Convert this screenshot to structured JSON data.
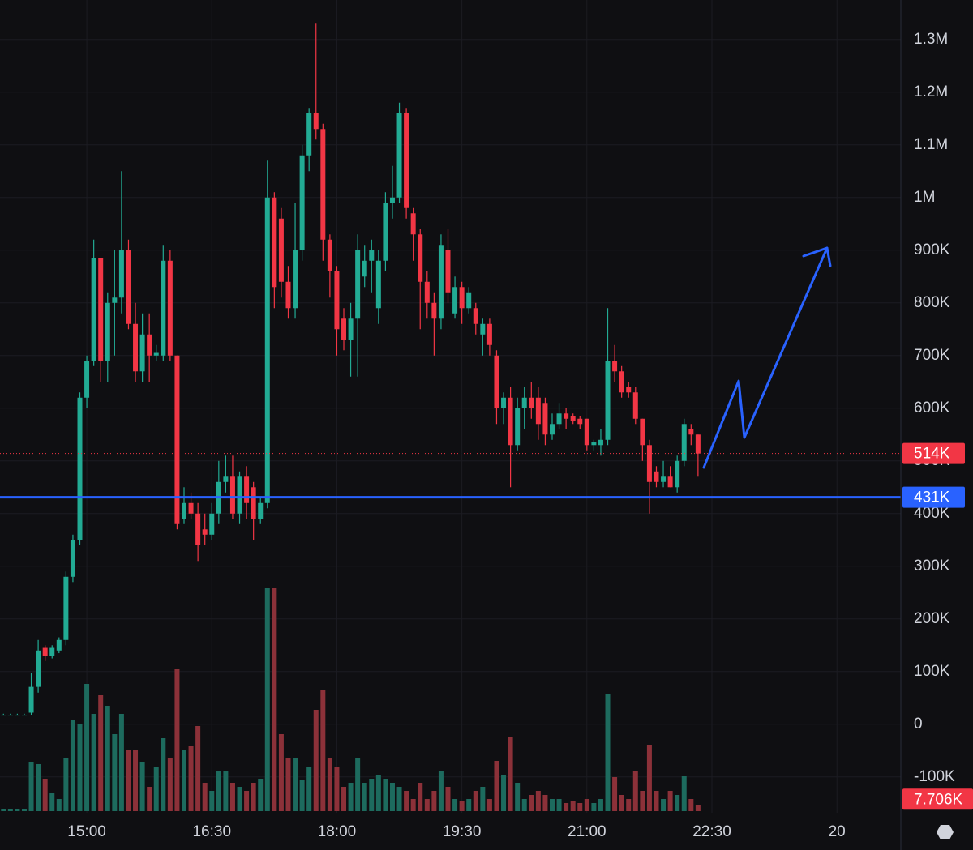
{
  "chart_data": {
    "type": "candlestick",
    "up_color": "#22ab94",
    "down_color": "#f23645",
    "volume_up_color": "#1d6b5e",
    "volume_down_color": "#8c3139",
    "grid": true,
    "xlim": [
      -0.5,
      129.2
    ],
    "ylim": [
      -168000,
      1375000
    ],
    "volume_lim": [
      0,
      280000
    ],
    "xticks": [
      {
        "value": 12,
        "label": "15:00"
      },
      {
        "value": 30,
        "label": "16:30"
      },
      {
        "value": 48,
        "label": "18:00"
      },
      {
        "value": 66,
        "label": "19:30"
      },
      {
        "value": 84,
        "label": "21:00"
      },
      {
        "value": 102,
        "label": "22:30"
      },
      {
        "value": 120,
        "label": "20"
      }
    ],
    "yticks": [
      {
        "value": -100000,
        "label": "-100K"
      },
      0,
      {
        "value": 100000,
        "label": "100K"
      },
      {
        "value": 200000,
        "label": "200K"
      },
      {
        "value": 300000,
        "label": "300K"
      },
      {
        "value": 400000,
        "label": "400K"
      },
      {
        "value": 500000,
        "label": "500K"
      },
      {
        "value": 600000,
        "label": "600K"
      },
      {
        "value": 700000,
        "label": "700K"
      },
      {
        "value": 800000,
        "label": "800K"
      },
      {
        "value": 900000,
        "label": "900K"
      },
      {
        "value": 1000000,
        "label": "1M"
      },
      {
        "value": 1100000,
        "label": "1.1M"
      },
      {
        "value": 1200000,
        "label": "1.2M"
      },
      {
        "value": 1300000,
        "label": "1.3M"
      }
    ],
    "open": [
      18000,
      18000,
      18000,
      18000,
      22000,
      71000,
      145000,
      130000,
      140000,
      160000,
      280000,
      350000,
      620000,
      690000,
      885000,
      690000,
      800000,
      810000,
      900000,
      760000,
      670000,
      740000,
      700000,
      700000,
      880000,
      700000,
      390000,
      420000,
      400000,
      370000,
      360000,
      400000,
      460000,
      470000,
      400000,
      470000,
      450000,
      390000,
      420000,
      1000000,
      960000,
      840000,
      790000,
      900000,
      1080000,
      1160000,
      1130000,
      920000,
      860000,
      770000,
      730000,
      770000,
      850000,
      880000,
      790000,
      880000,
      990000,
      1000000,
      1160000,
      970000,
      930000,
      840000,
      800000,
      770000,
      900000,
      780000,
      830000,
      790000,
      790000,
      740000,
      760000,
      700000,
      600000,
      620000,
      530000,
      600000,
      620000,
      620000,
      610000,
      550000,
      570000,
      590000,
      585000,
      580000,
      580000,
      530000,
      530000,
      540000,
      690000,
      670000,
      640000,
      630000,
      580000,
      530000,
      480000,
      460000,
      470000,
      450000,
      500000,
      560000,
      550000
    ],
    "high": [
      20000,
      20000,
      20000,
      20000,
      98000,
      160000,
      150000,
      150000,
      165000,
      290000,
      360000,
      630000,
      700000,
      920000,
      885000,
      820000,
      900000,
      1050000,
      920000,
      800000,
      780000,
      780000,
      720000,
      910000,
      900000,
      700000,
      450000,
      440000,
      420000,
      400000,
      420000,
      500000,
      510000,
      510000,
      480000,
      490000,
      460000,
      430000,
      1070000,
      1010000,
      980000,
      870000,
      990000,
      1100000,
      1170000,
      1330000,
      1140000,
      930000,
      870000,
      790000,
      800000,
      930000,
      910000,
      920000,
      900000,
      1010000,
      1060000,
      1180000,
      1170000,
      980000,
      940000,
      860000,
      820000,
      930000,
      940000,
      850000,
      840000,
      830000,
      800000,
      770000,
      770000,
      710000,
      630000,
      640000,
      620000,
      640000,
      650000,
      640000,
      620000,
      590000,
      610000,
      600000,
      590000,
      585000,
      580000,
      540000,
      560000,
      790000,
      720000,
      680000,
      650000,
      640000,
      580000,
      540000,
      490000,
      500000,
      490000,
      510000,
      580000,
      570000,
      550000
    ],
    "low": [
      17000,
      17000,
      17000,
      17000,
      18000,
      60000,
      120000,
      125000,
      135000,
      150000,
      270000,
      340000,
      600000,
      680000,
      650000,
      650000,
      700000,
      780000,
      750000,
      650000,
      650000,
      650000,
      690000,
      690000,
      690000,
      370000,
      380000,
      390000,
      310000,
      340000,
      350000,
      380000,
      440000,
      390000,
      380000,
      390000,
      350000,
      380000,
      410000,
      790000,
      810000,
      770000,
      770000,
      880000,
      1050000,
      1110000,
      880000,
      810000,
      700000,
      710000,
      660000,
      660000,
      830000,
      820000,
      760000,
      860000,
      960000,
      990000,
      960000,
      880000,
      750000,
      770000,
      700000,
      750000,
      800000,
      770000,
      760000,
      780000,
      740000,
      700000,
      700000,
      570000,
      570000,
      450000,
      520000,
      560000,
      580000,
      540000,
      530000,
      540000,
      560000,
      560000,
      570000,
      560000,
      520000,
      520000,
      510000,
      530000,
      650000,
      620000,
      620000,
      570000,
      500000,
      400000,
      450000,
      450000,
      450000,
      440000,
      490000,
      530000,
      470000
    ],
    "close": [
      18000,
      18000,
      18000,
      18000,
      71000,
      140000,
      130000,
      145000,
      160000,
      280000,
      350000,
      620000,
      690000,
      885000,
      690000,
      800000,
      810000,
      900000,
      760000,
      670000,
      740000,
      700000,
      705000,
      880000,
      700000,
      380000,
      420000,
      400000,
      340000,
      360000,
      400000,
      460000,
      470000,
      400000,
      470000,
      420000,
      390000,
      420000,
      1000000,
      830000,
      840000,
      790000,
      900000,
      1080000,
      1160000,
      1130000,
      920000,
      860000,
      750000,
      730000,
      770000,
      900000,
      880000,
      900000,
      880000,
      990000,
      1000000,
      1160000,
      980000,
      930000,
      840000,
      800000,
      770000,
      910000,
      820000,
      830000,
      790000,
      820000,
      760000,
      760000,
      720000,
      600000,
      620000,
      530000,
      600000,
      620000,
      600000,
      570000,
      550000,
      570000,
      590000,
      580000,
      575000,
      570000,
      530000,
      535000,
      540000,
      690000,
      670000,
      630000,
      630000,
      580000,
      530000,
      460000,
      460000,
      470000,
      450000,
      500000,
      570000,
      550000,
      514000
    ],
    "volume": [
      2000,
      2000,
      2000,
      2000,
      60000,
      58000,
      40000,
      22000,
      15000,
      65000,
      112000,
      107000,
      157000,
      120000,
      143000,
      130000,
      95000,
      120000,
      75000,
      75000,
      60000,
      30000,
      55000,
      90000,
      65000,
      175000,
      75000,
      80000,
      105000,
      35000,
      25000,
      50000,
      50000,
      35000,
      30000,
      25000,
      35000,
      40000,
      275000,
      275000,
      95000,
      65000,
      65000,
      38000,
      55000,
      125000,
      150000,
      65000,
      55000,
      30000,
      35000,
      65000,
      35000,
      40000,
      45000,
      40000,
      35000,
      30000,
      25000,
      15000,
      35000,
      15000,
      25000,
      50000,
      30000,
      15000,
      12000,
      15000,
      25000,
      30000,
      15000,
      62000,
      45000,
      92000,
      35000,
      15000,
      20000,
      25000,
      20000,
      15000,
      15000,
      10000,
      12000,
      10000,
      15000,
      10000,
      15000,
      145000,
      42000,
      20000,
      15000,
      50000,
      25000,
      82000,
      25000,
      15000,
      25000,
      20000,
      43000,
      15000,
      7706
    ],
    "last_price_label": "514K",
    "last_volume_label": "7.706K",
    "level": {
      "value": 431000,
      "label": "431K",
      "color": "#2962ff"
    }
  }
}
